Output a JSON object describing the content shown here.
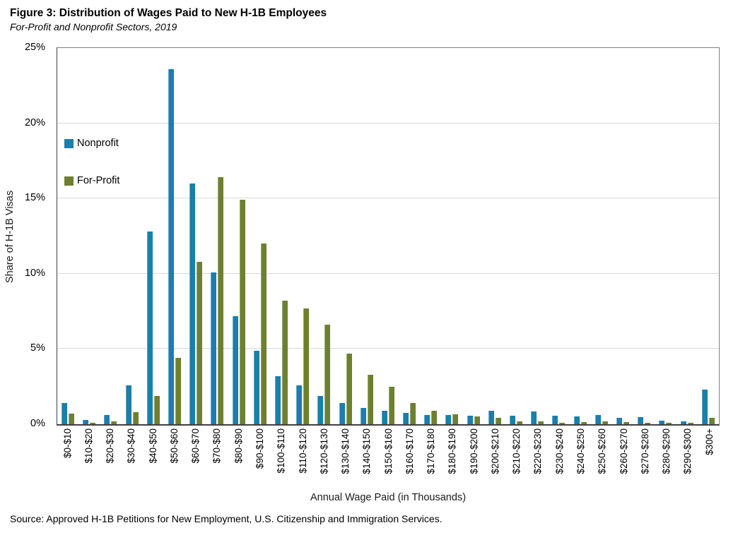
{
  "header": {
    "title": "Figure 3: Distribution of Wages Paid to New H-1B Employees",
    "subtitle": "For-Profit and Nonprofit Sectors, 2019"
  },
  "source": "Source: Approved H-1B Petitions for New Employment, U.S. Citizenship and Immigration Services.",
  "chart_data": {
    "type": "bar",
    "title": "Figure 3: Distribution of Wages Paid to New H-1B Employees",
    "subtitle": "For-Profit and Nonprofit Sectors, 2019",
    "xlabel": "Annual Wage Paid (in Thousands)",
    "ylabel": "Share of H-1B Visas",
    "ylim": [
      0,
      25
    ],
    "yticks": [
      0,
      5,
      10,
      15,
      20,
      25
    ],
    "ytick_labels": [
      "0%",
      "5%",
      "10%",
      "15%",
      "20%",
      "25%"
    ],
    "grid": true,
    "legend_position": "inside-top-left",
    "categories": [
      "$0-$10",
      "$10-$20",
      "$20-$30",
      "$30-$40",
      "$40-$50",
      "$50-$60",
      "$60-$70",
      "$70-$80",
      "$80-$90",
      "$90-$100",
      "$100-$110",
      "$110-$120",
      "$120-$130",
      "$130-$140",
      "$140-$150",
      "$150-$160",
      "$160-$170",
      "$170-$180",
      "$180-$190",
      "$190-$200",
      "$200-$210",
      "$210-$220",
      "$220-$230",
      "$230-$240",
      "$240-$250",
      "$250-$260",
      "$260-$270",
      "$270-$280",
      "$280-$290",
      "$290-$300",
      "$300+"
    ],
    "series": [
      {
        "name": "Nonprofit",
        "color": "#1B7EAD",
        "values": [
          1.4,
          0.3,
          0.6,
          2.6,
          12.8,
          23.6,
          16.0,
          10.1,
          7.2,
          4.9,
          3.2,
          2.6,
          1.9,
          1.4,
          1.1,
          0.9,
          0.75,
          0.6,
          0.6,
          0.55,
          0.9,
          0.55,
          0.85,
          0.55,
          0.5,
          0.6,
          0.4,
          0.45,
          0.25,
          0.2,
          2.3
        ]
      },
      {
        "name": "For-Profit",
        "color": "#6E8030",
        "values": [
          0.7,
          0.1,
          0.2,
          0.8,
          1.9,
          4.4,
          10.8,
          16.4,
          14.9,
          12.0,
          8.2,
          7.7,
          6.6,
          4.7,
          3.3,
          2.5,
          1.4,
          0.9,
          0.65,
          0.5,
          0.4,
          0.2,
          0.2,
          0.1,
          0.15,
          0.2,
          0.15,
          0.1,
          0.1,
          0.08,
          0.4
        ]
      }
    ]
  }
}
